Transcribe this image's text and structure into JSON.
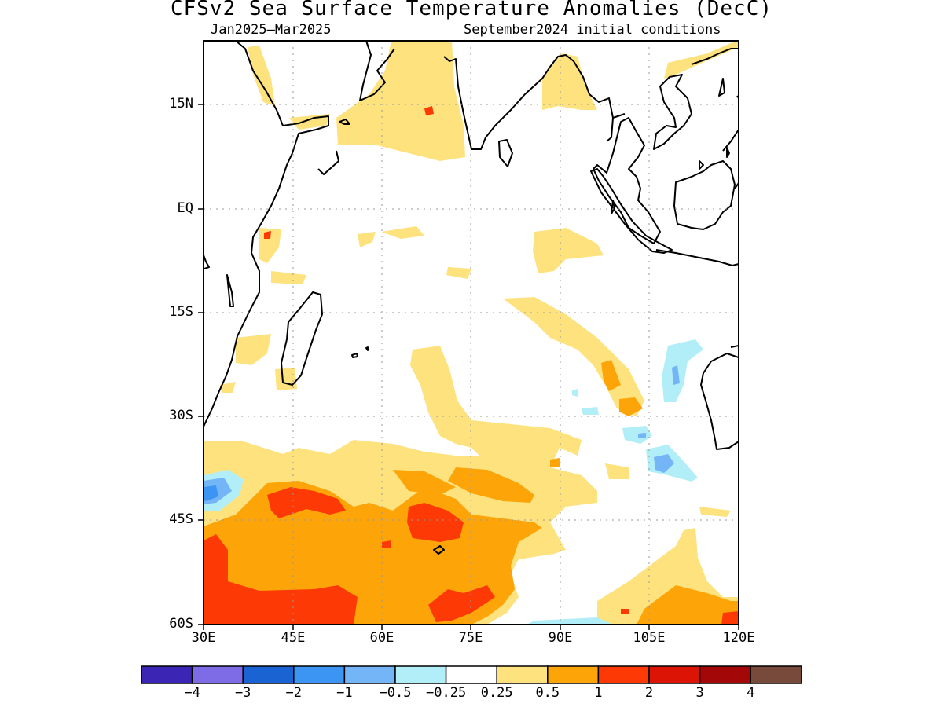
{
  "title": "CFSv2 Sea Surface Temperature Anomalies (DecC)",
  "period": "Jan2025–Mar2025",
  "initial_conditions": "September2024 initial conditions",
  "map": {
    "lon_range": [
      30,
      120
    ],
    "lat_range": [
      -60,
      24
    ],
    "gridlines": true,
    "y_ticks": [
      {
        "label": "15N",
        "lat": 15
      },
      {
        "label": "EQ",
        "lat": 0
      },
      {
        "label": "15S",
        "lat": -15
      },
      {
        "label": "30S",
        "lat": -30
      },
      {
        "label": "45S",
        "lat": -45
      },
      {
        "label": "60S",
        "lat": -60
      }
    ],
    "x_ticks": [
      {
        "label": "30E",
        "lon": 30
      },
      {
        "label": "45E",
        "lon": 45
      },
      {
        "label": "60E",
        "lon": 60
      },
      {
        "label": "75E",
        "lon": 75
      },
      {
        "label": "90E",
        "lon": 90
      },
      {
        "label": "105E",
        "lon": 105
      },
      {
        "label": "120E",
        "lon": 120
      }
    ]
  },
  "colorbar": {
    "colors": [
      "#3a25b4",
      "#7e6be6",
      "#1a63d3",
      "#3d95f3",
      "#74b5f8",
      "#b2eef8",
      "#ffffff",
      "#fde27e",
      "#fca408",
      "#fd3a05",
      "#dc1405",
      "#a30707",
      "#774a3c"
    ],
    "labels": [
      "−4",
      "−3",
      "−2",
      "−1",
      "−0.5",
      "−0.25",
      "0.25",
      "0.5",
      "1",
      "2",
      "3",
      "4"
    ]
  }
}
